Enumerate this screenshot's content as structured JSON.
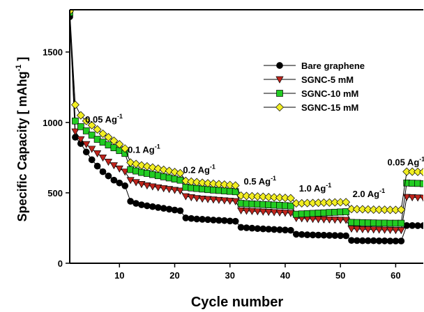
{
  "chart_data": {
    "type": "line",
    "xlabel": "Cycle number",
    "ylabel": "Specific Capacity [ mAhg",
    "ylabel_sup": "-1",
    "ylabel_close": " ]",
    "xlim": [
      1,
      65
    ],
    "ylim": [
      0,
      1800
    ],
    "xticks": [
      10,
      20,
      30,
      40,
      50,
      60
    ],
    "yticks": [
      0,
      500,
      1000,
      1500
    ],
    "legend_position": "upper-right",
    "annotations": [
      {
        "text": "0.05 Ag",
        "sup": "-1",
        "x": 3.8,
        "y": 1000
      },
      {
        "text": "0.1 Ag",
        "sup": "-1",
        "x": 11.5,
        "y": 785
      },
      {
        "text": "0.2 Ag",
        "sup": "-1",
        "x": 21.5,
        "y": 640
      },
      {
        "text": "0.5 Ag",
        "sup": "-1",
        "x": 32.5,
        "y": 560
      },
      {
        "text": "1.0 Ag",
        "sup": "-1",
        "x": 42.5,
        "y": 510
      },
      {
        "text": "2.0 Ag",
        "sup": "-1",
        "x": 52.2,
        "y": 470
      },
      {
        "text": "0.05 Ag",
        "sup": "-1",
        "x": 58.5,
        "y": 695
      }
    ],
    "x": [
      1,
      2,
      3,
      4,
      5,
      6,
      7,
      8,
      9,
      10,
      11,
      12,
      13,
      14,
      15,
      16,
      17,
      18,
      19,
      20,
      21,
      22,
      23,
      24,
      25,
      26,
      27,
      28,
      29,
      30,
      31,
      32,
      33,
      34,
      35,
      36,
      37,
      38,
      39,
      40,
      41,
      42,
      43,
      44,
      45,
      46,
      47,
      48,
      49,
      50,
      51,
      52,
      53,
      54,
      55,
      56,
      57,
      58,
      59,
      60,
      61,
      62,
      63,
      64,
      65
    ],
    "series": [
      {
        "name": "Bare graphene",
        "color": "#000000",
        "marker": "circle",
        "values": [
          1750,
          895,
          850,
          790,
          735,
          690,
          650,
          620,
          590,
          570,
          550,
          440,
          425,
          415,
          408,
          402,
          396,
          390,
          384,
          378,
          373,
          322,
          318,
          314,
          312,
          310,
          307,
          305,
          303,
          300,
          298,
          255,
          252,
          249,
          246,
          244,
          242,
          240,
          238,
          236,
          234,
          206,
          204,
          202,
          201,
          200,
          199,
          198,
          197,
          196,
          195,
          162,
          161,
          160,
          160,
          160,
          159,
          159,
          158,
          158,
          158,
          268,
          268,
          267,
          267
        ]
      },
      {
        "name": "SGNC-5 mM",
        "color": "#c0241c",
        "marker": "triangle-down",
        "values": [
          1770,
          935,
          880,
          845,
          812,
          780,
          750,
          720,
          695,
          672,
          650,
          590,
          575,
          562,
          552,
          545,
          538,
          532,
          526,
          520,
          515,
          475,
          468,
          462,
          458,
          455,
          452,
          449,
          446,
          443,
          440,
          375,
          372,
          370,
          368,
          366,
          364,
          362,
          360,
          358,
          356,
          320,
          318,
          316,
          314,
          312,
          311,
          310,
          309,
          308,
          307,
          245,
          243,
          241,
          240,
          239,
          238,
          237,
          236,
          235,
          235,
          470,
          468,
          466,
          465
        ]
      },
      {
        "name": "SGNC-10 mM",
        "color": "#22cc22",
        "marker": "square",
        "values": [
          1780,
          1010,
          970,
          940,
          910,
          880,
          860,
          840,
          820,
          800,
          780,
          665,
          655,
          645,
          638,
          630,
          622,
          614,
          606,
          598,
          590,
          540,
          535,
          531,
          527,
          523,
          520,
          517,
          514,
          511,
          508,
          425,
          423,
          421,
          419,
          417,
          415,
          413,
          411,
          409,
          407,
          348,
          350,
          352,
          354,
          356,
          358,
          360,
          362,
          364,
          366,
          290,
          289,
          288,
          287,
          286,
          285,
          285,
          284,
          284,
          284,
          570,
          568,
          567,
          565
        ]
      },
      {
        "name": "SGNC-15 mM",
        "color": "#f2ee22",
        "marker": "diamond",
        "values": [
          1790,
          1125,
          1050,
          1010,
          980,
          950,
          920,
          895,
          870,
          845,
          815,
          715,
          705,
          695,
          688,
          680,
          672,
          664,
          656,
          648,
          640,
          585,
          580,
          576,
          572,
          568,
          565,
          562,
          559,
          556,
          552,
          480,
          478,
          476,
          474,
          472,
          470,
          468,
          466,
          464,
          462,
          425,
          426,
          427,
          428,
          429,
          430,
          431,
          432,
          433,
          434,
          385,
          384,
          383,
          382,
          381,
          380,
          380,
          379,
          379,
          380,
          650,
          650,
          649,
          648
        ]
      }
    ]
  }
}
